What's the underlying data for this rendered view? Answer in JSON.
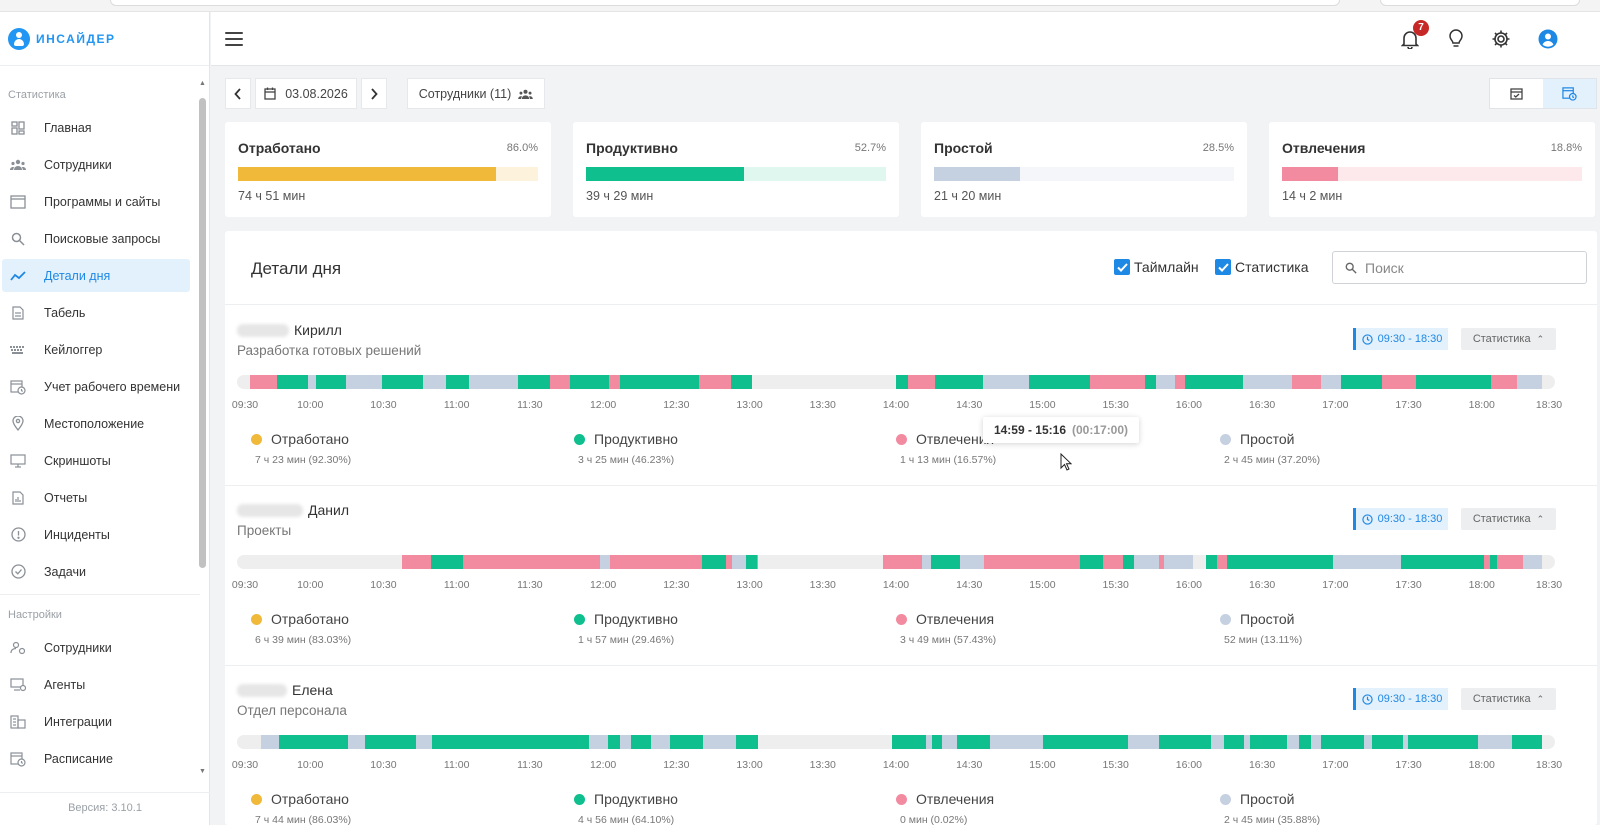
{
  "logo": {
    "text": "ИНСАЙДЕР"
  },
  "sidebar": {
    "group_stats": "Статистика",
    "items": [
      {
        "label": "Главная",
        "icon": "dashboard-icon"
      },
      {
        "label": "Сотрудники",
        "icon": "users-icon"
      },
      {
        "label": "Программы и сайты",
        "icon": "window-icon"
      },
      {
        "label": "Поисковые запросы",
        "icon": "search-icon"
      },
      {
        "label": "Детали дня",
        "icon": "trend-icon",
        "active": true
      },
      {
        "label": "Табель",
        "icon": "document-icon"
      },
      {
        "label": "Кейлоггер",
        "icon": "keyboard-icon"
      },
      {
        "label": "Учет рабочего времени",
        "icon": "calendar-clock-icon"
      },
      {
        "label": "Местоположение",
        "icon": "location-icon"
      },
      {
        "label": "Скриншоты",
        "icon": "monitor-icon"
      },
      {
        "label": "Отчеты",
        "icon": "report-icon"
      },
      {
        "label": "Инциденты",
        "icon": "alert-icon"
      },
      {
        "label": "Задачи",
        "icon": "check-circle-icon"
      }
    ],
    "group_settings": "Настройки",
    "settings_items": [
      {
        "label": "Сотрудники",
        "icon": "users-settings-icon"
      },
      {
        "label": "Агенты",
        "icon": "monitor-agent-icon"
      },
      {
        "label": "Интеграции",
        "icon": "building-icon"
      },
      {
        "label": "Расписание",
        "icon": "calendar-clock-icon"
      }
    ],
    "version": "Версия: 3.10.1"
  },
  "header": {
    "notifications_count": "7"
  },
  "toolbar": {
    "date": "03.08.2026",
    "employees": "Сотрудники (11)"
  },
  "cards": [
    {
      "title": "Отработано",
      "pct": "86.0%",
      "fraction": 0.86,
      "value": "74 ч 51 мин",
      "color": "#f0b93a",
      "track": "#fdf3dd"
    },
    {
      "title": "Продуктивно",
      "pct": "52.7%",
      "fraction": 0.527,
      "value": "39 ч 29 мин",
      "color": "#0fbf8d",
      "track": "#dff7ef"
    },
    {
      "title": "Простой",
      "pct": "28.5%",
      "fraction": 0.285,
      "value": "21 ч 20 мин",
      "color": "#c5d0e0",
      "track": "#f4f6f9"
    },
    {
      "title": "Отвлечения",
      "pct": "18.8%",
      "fraction": 0.188,
      "value": "14 ч 2 мин",
      "color": "#f38ba0",
      "track": "#fde8ec"
    }
  ],
  "details": {
    "title": "Детали дня",
    "timeline_label": "Таймлайн",
    "statistics_label": "Статистика",
    "search_placeholder": "Поиск",
    "ticks": [
      "09:30",
      "10:00",
      "10:30",
      "11:00",
      "11:30",
      "12:00",
      "12:30",
      "13:00",
      "13:30",
      "14:00",
      "14:30",
      "15:00",
      "15:30",
      "16:00",
      "16:30",
      "17:00",
      "17:30",
      "18:00",
      "18:30"
    ],
    "legend_names": {
      "worked": "Отработано",
      "productive": "Продуктивно",
      "distraction": "Отвлечения",
      "idle": "Простой"
    },
    "employees": [
      {
        "name": "Кирилл",
        "dept": "Разработка готовых решений",
        "schedule": "09:30 - 18:30",
        "stats_button": "Статистика",
        "worked": "7 ч 23 мин (92.30%)",
        "productive": "3 ч 25 мин (46.23%)",
        "distraction": "1 ч 13 мин (16.57%)",
        "idle": "2 ч 45 мин (37.20%)"
      },
      {
        "name": "Данил",
        "dept": "Проекты",
        "schedule": "09:30 - 18:30",
        "stats_button": "Статистика",
        "worked": "6 ч 39 мин (83.03%)",
        "productive": "1 ч 57 мин (29.46%)",
        "distraction": "3 ч 49 мин (57.43%)",
        "idle": "52 мин (13.11%)"
      },
      {
        "name": "Елена",
        "dept": "Отдел персонала",
        "schedule": "09:30 - 18:30",
        "stats_button": "Статистика",
        "worked": "7 ч 44 мин (86.03%)",
        "productive": "4 ч 56 мин (64.10%)",
        "distraction": "0 мин (0.02%)",
        "idle": "2 ч 45 мин (35.88%)"
      }
    ]
  },
  "tooltip": {
    "range": "14:59 - 15:16",
    "duration": "(00:17:00)"
  },
  "colors": {
    "productive": "#0fbf8d",
    "distraction": "#f38ba0",
    "idle": "#c5d0e0",
    "worked": "#f0b93a",
    "accent": "#1e88e5"
  }
}
